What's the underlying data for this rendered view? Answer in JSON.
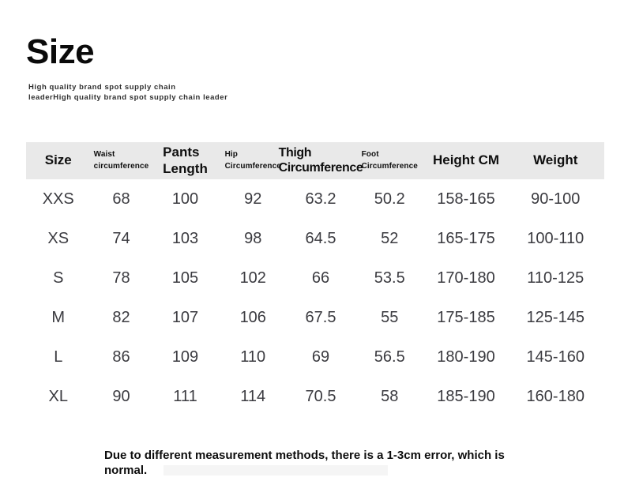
{
  "header": {
    "title": "Size",
    "subtitle_line1": "High quality brand spot supply chain",
    "subtitle_line2": "leaderHigh quality brand spot supply chain leader"
  },
  "table": {
    "headers": [
      {
        "line1": "Size",
        "line2": "",
        "style": "large"
      },
      {
        "line1": "Waist",
        "line2": "circumference",
        "style": "small"
      },
      {
        "line1": "Pants",
        "line2": "Length",
        "style": "large"
      },
      {
        "line1": "Hip",
        "line2": "Circumference",
        "style": "small"
      },
      {
        "line1": "Thigh",
        "line2": "Circumference",
        "style": "large"
      },
      {
        "line1": "Foot",
        "line2": "Circumference",
        "style": "small"
      },
      {
        "line1": "Height CM",
        "line2": "",
        "style": "large"
      },
      {
        "line1": "Weight",
        "line2": "",
        "style": "large"
      }
    ],
    "rows": [
      [
        "XXS",
        "68",
        "100",
        "92",
        "63.2",
        "50.2",
        "158-165",
        "90-100"
      ],
      [
        "XS",
        "74",
        "103",
        "98",
        "64.5",
        "52",
        "165-175",
        "100-110"
      ],
      [
        "S",
        "78",
        "105",
        "102",
        "66",
        "53.5",
        "170-180",
        "110-125"
      ],
      [
        "M",
        "82",
        "107",
        "106",
        "67.5",
        "55",
        "175-185",
        "125-145"
      ],
      [
        "L",
        "86",
        "109",
        "110",
        "69",
        "56.5",
        "180-190",
        "145-160"
      ],
      [
        "XL",
        "90",
        "111",
        "114",
        "70.5",
        "58",
        "185-190",
        "160-180"
      ]
    ]
  },
  "footnote": "Due to different measurement methods, there is a 1-3cm error, which is normal.",
  "colors": {
    "header_band": "#e9e9e9",
    "title_text": "#0a0a0a",
    "data_text": "#3b3b40",
    "background": "#ffffff"
  }
}
